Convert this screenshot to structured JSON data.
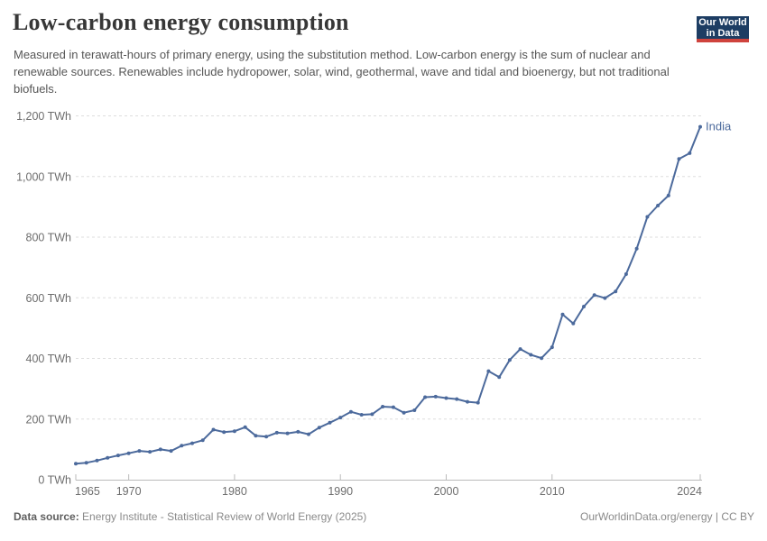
{
  "header": {
    "title": "Low-carbon energy consumption",
    "subtitle": "Measured in terawatt-hours of primary energy, using the substitution method. Low-carbon energy is the sum of nuclear and renewable sources. Renewables include hydropower, solar, wind, geothermal, wave and tidal and bioenergy, but not traditional biofuels."
  },
  "logo": {
    "line1": "Our World",
    "line2": "in Data"
  },
  "chart_data": {
    "type": "line",
    "title": "Low-carbon energy consumption",
    "unit": "TWh",
    "xlim": [
      1965,
      2024
    ],
    "ylim": [
      0,
      1200
    ],
    "grid": "horizontal dashed",
    "legend_position": "end-of-line label",
    "x_ticks": {
      "years": [
        1965,
        1970,
        1980,
        1990,
        2000,
        2010,
        2024
      ],
      "labels": [
        "1965",
        "1970",
        "1980",
        "1990",
        "2000",
        "2010",
        "2024"
      ]
    },
    "y_ticks": {
      "values": [
        0,
        200,
        400,
        600,
        800,
        1000,
        1200
      ],
      "labels": [
        "0 TWh",
        "200 TWh",
        "400 TWh",
        "600 TWh",
        "800 TWh",
        "1,000 TWh",
        "1,200 TWh"
      ]
    },
    "series": [
      {
        "name": "India",
        "color": "#4C6A9C",
        "years": [
          1965,
          1966,
          1967,
          1968,
          1969,
          1970,
          1971,
          1972,
          1973,
          1974,
          1975,
          1976,
          1977,
          1978,
          1979,
          1980,
          1981,
          1982,
          1983,
          1984,
          1985,
          1986,
          1987,
          1988,
          1989,
          1990,
          1991,
          1992,
          1993,
          1994,
          1995,
          1996,
          1997,
          1998,
          1999,
          2000,
          2001,
          2002,
          2003,
          2004,
          2005,
          2006,
          2007,
          2008,
          2009,
          2010,
          2011,
          2012,
          2013,
          2014,
          2015,
          2016,
          2017,
          2018,
          2019,
          2020,
          2021,
          2022,
          2023,
          2024
        ],
        "values": [
          53,
          56,
          63,
          72,
          80,
          87,
          95,
          92,
          100,
          95,
          112,
          120,
          130,
          165,
          157,
          160,
          173,
          145,
          142,
          155,
          153,
          158,
          150,
          172,
          188,
          205,
          224,
          214,
          216,
          241,
          239,
          221,
          229,
          272,
          274,
          269,
          266,
          257,
          254,
          358,
          338,
          395,
          431,
          412,
          401,
          437,
          545,
          515,
          571,
          609,
          599,
          621,
          678,
          762,
          867,
          904,
          937,
          1058,
          1077,
          1164
        ]
      }
    ]
  },
  "footer": {
    "source_label": "Data source:",
    "source_text": " Energy Institute - Statistical Review of World Energy (2025)",
    "credit": "OurWorldinData.org/energy | CC BY"
  },
  "colors": {
    "line": "#4C6A9C",
    "grid": "#dedede",
    "axis": "#bababa",
    "tick_label": "#6d6d6d",
    "title": "#373737",
    "subtitle": "#565656",
    "footer_text": "#8a8a8a",
    "footer_label": "#5f5f5f",
    "logo_bg": "#1d3d63",
    "logo_red": "#cf433d"
  }
}
